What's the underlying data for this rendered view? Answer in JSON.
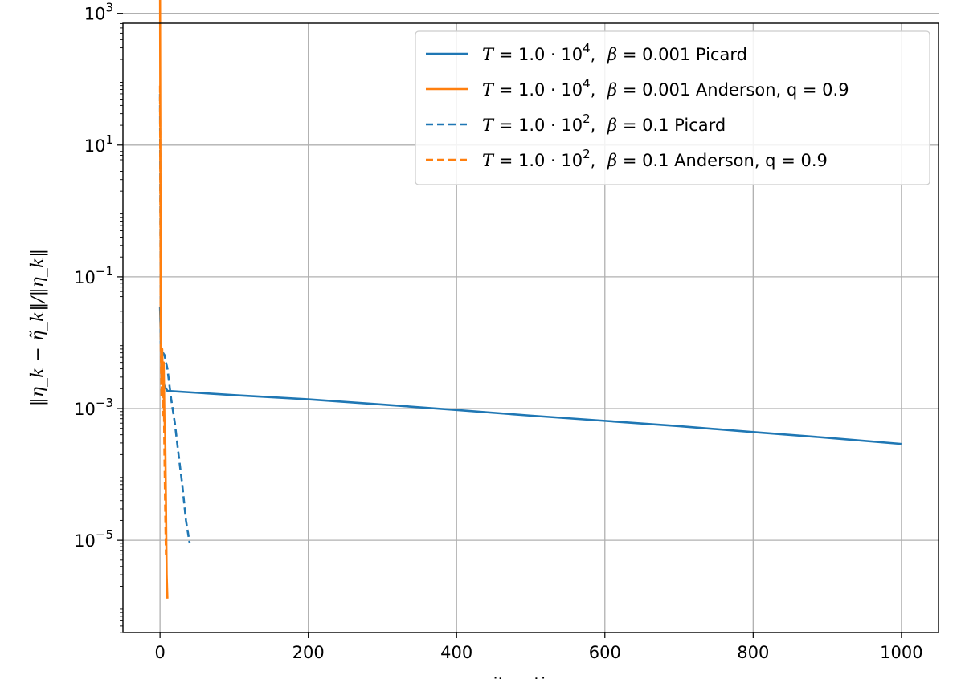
{
  "chart_data": {
    "type": "line",
    "title": "",
    "xlabel": "iteration",
    "ylabel": "‖η_k − η̃_k‖/‖η_k‖",
    "xlim": [
      -50,
      1050
    ],
    "ylim_log10": [
      -6.4,
      2.85
    ],
    "yscale": "log",
    "grid": true,
    "legend_position": "top-right",
    "x_ticks": [
      0,
      200,
      400,
      600,
      800,
      1000
    ],
    "x_tick_labels": [
      "0",
      "200",
      "400",
      "600",
      "800",
      "1000"
    ],
    "y_ticks_log10": [
      3,
      1,
      -1,
      -3,
      -5
    ],
    "y_tick_labels": [
      {
        "base": "10",
        "exp": "3"
      },
      {
        "base": "10",
        "exp": "1"
      },
      {
        "base": "10",
        "exp": "−1"
      },
      {
        "base": "10",
        "exp": "−3"
      },
      {
        "base": "10",
        "exp": "−5"
      }
    ],
    "series": [
      {
        "name": "T = 1.0·10^4,  β = 0.001 Picard",
        "legend": {
          "t_exp": "4",
          "beta": "0.001",
          "method": "Picard"
        },
        "color": "#1f77b4",
        "style": "solid",
        "x": [
          0,
          1,
          2,
          3,
          4,
          6,
          10,
          100,
          200,
          300,
          400,
          500,
          600,
          700,
          800,
          900,
          1000
        ],
        "y": [
          0.035,
          0.012,
          0.006,
          0.004,
          0.0028,
          0.0022,
          0.00185,
          0.0016,
          0.00138,
          0.00115,
          0.00095,
          0.00078,
          0.00065,
          0.00054,
          0.00044,
          0.00036,
          0.00029
        ]
      },
      {
        "name": "T = 1.0·10^4,  β = 0.001 Anderson, q = 0.9",
        "legend": {
          "t_exp": "4",
          "beta": "0.001",
          "method": "Anderson, q = 0.9"
        },
        "color": "#ff7f0e",
        "style": "solid",
        "x": [
          0,
          1,
          2,
          3,
          4,
          5,
          6,
          7,
          8,
          9,
          10
        ],
        "y": [
          2500,
          0.02,
          0.003,
          0.008,
          0.0015,
          0.005,
          0.0007,
          0.0004,
          4e-05,
          3e-06,
          1.3e-06
        ]
      },
      {
        "name": "T = 1.0·10^2,  β = 0.1 Picard",
        "legend": {
          "t_exp": "2",
          "beta": "0.1",
          "method": "Picard"
        },
        "color": "#1f77b4",
        "style": "dashed",
        "x": [
          0,
          1,
          2,
          4,
          6,
          10,
          15,
          20,
          25,
          30,
          35,
          40
        ],
        "y": [
          60,
          0.01,
          0.008,
          0.007,
          0.0065,
          0.004,
          0.0014,
          0.0006,
          0.0002,
          7e-05,
          2e-05,
          9e-06
        ]
      },
      {
        "name": "T = 1.0·10^2,  β = 0.1 Anderson, q = 0.9",
        "legend": {
          "t_exp": "2",
          "beta": "0.1",
          "method": "Anderson, q = 0.9"
        },
        "color": "#ff7f0e",
        "style": "dashed",
        "x": [
          0,
          1,
          2,
          3,
          4,
          5,
          6,
          7,
          8
        ],
        "y": [
          80,
          0.009,
          0.0015,
          0.006,
          0.0008,
          0.002,
          0.0002,
          3e-05,
          6e-06
        ]
      }
    ]
  }
}
